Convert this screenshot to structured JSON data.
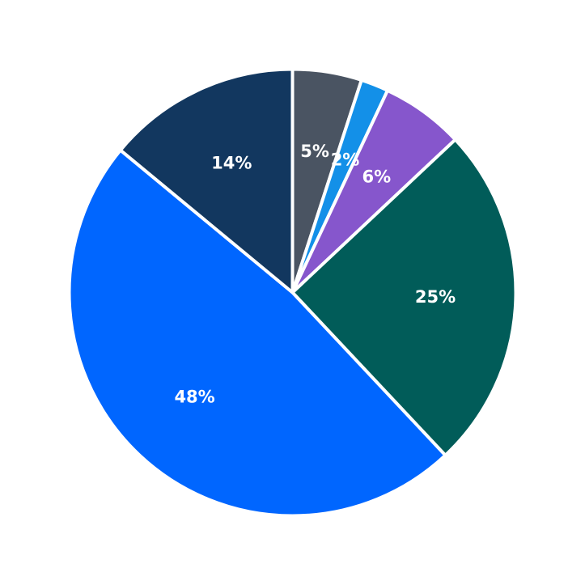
{
  "chart_data": {
    "type": "pie",
    "title": "",
    "start_angle_deg": 0,
    "direction": "clockwise",
    "slices": [
      {
        "label": "5%",
        "value": 5,
        "color": "#4a5462"
      },
      {
        "label": "2%",
        "value": 2,
        "color": "#1390e8"
      },
      {
        "label": "6%",
        "value": 6,
        "color": "#8656cc"
      },
      {
        "label": "25%",
        "value": 25,
        "color": "#015c59"
      },
      {
        "label": "48%",
        "value": 48,
        "color": "#0066ff"
      },
      {
        "label": "14%",
        "value": 14,
        "color": "#12375f"
      }
    ],
    "slice_border_color": "#ffffff",
    "legend": "none"
  }
}
